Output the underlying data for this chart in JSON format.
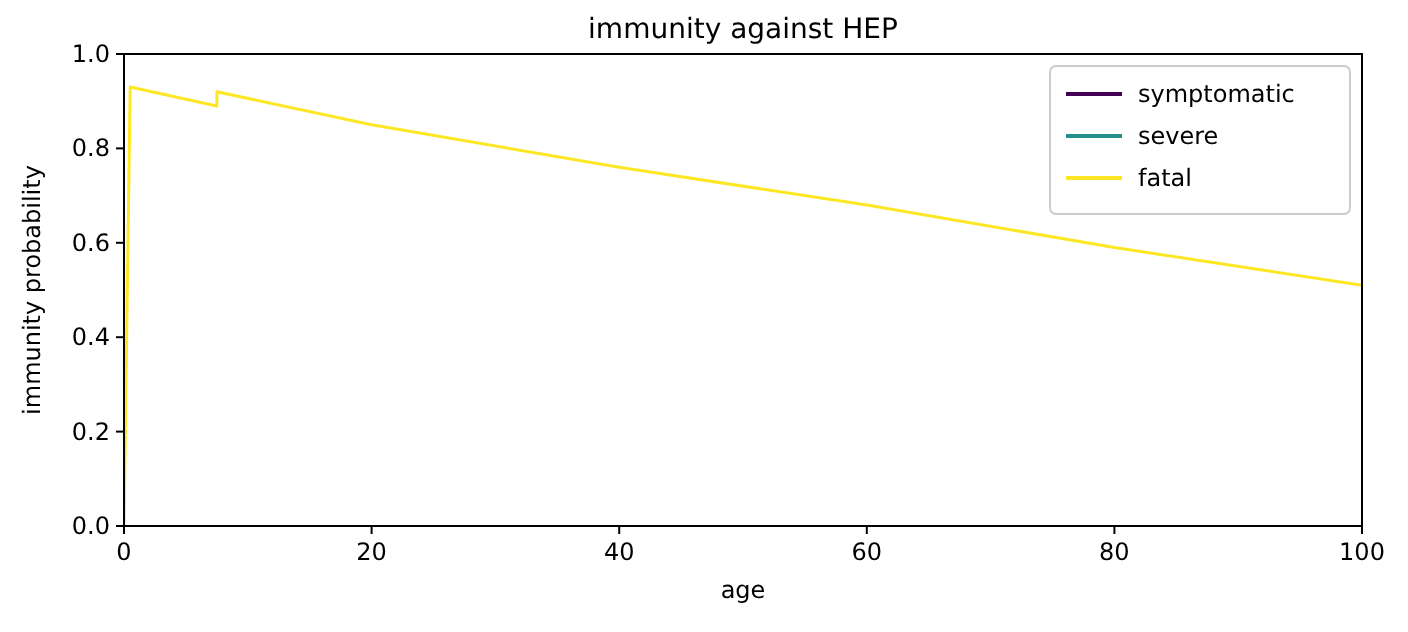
{
  "chart_data": {
    "type": "line",
    "title": "immunity against HEP",
    "xlabel": "age",
    "ylabel": "immunity probability",
    "x": [
      0,
      0.5,
      7.5,
      7.5,
      20,
      40,
      60,
      80,
      100
    ],
    "series": [
      {
        "name": "symptomatic",
        "color": "#440154",
        "values": [
          null,
          null,
          null,
          null,
          null,
          null,
          null,
          null,
          null
        ]
      },
      {
        "name": "severe",
        "color": "#21918c",
        "values": [
          null,
          null,
          null,
          null,
          null,
          null,
          null,
          null,
          null
        ]
      },
      {
        "name": "fatal",
        "color": "#fde725",
        "values": [
          0,
          0.93,
          0.89,
          0.92,
          0.85,
          0.76,
          0.68,
          0.59,
          0.51
        ]
      }
    ],
    "xlim": [
      0,
      100
    ],
    "xticks": [
      0,
      20,
      40,
      60,
      80,
      100
    ],
    "ylim": [
      0,
      1
    ],
    "yticks": [
      {
        "value": 0,
        "label": "0.0"
      },
      {
        "value": 0.2,
        "label": "0.2"
      },
      {
        "value": 0.4,
        "label": "0.4"
      },
      {
        "value": 0.6,
        "label": "0.6"
      },
      {
        "value": 0.8,
        "label": "0.8"
      },
      {
        "value": 1,
        "label": "1.0"
      }
    ],
    "legend": "top right",
    "grid": false
  }
}
